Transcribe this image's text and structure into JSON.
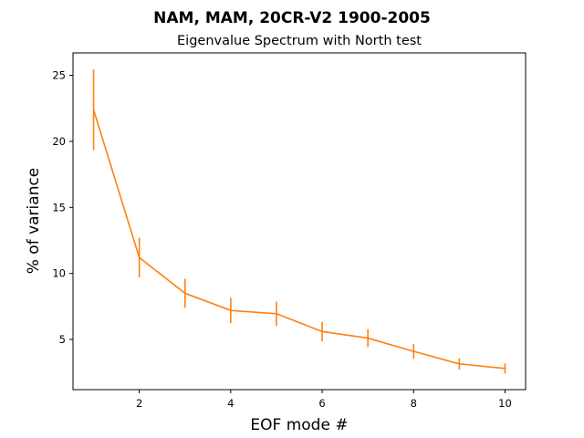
{
  "figure": {
    "suptitle": "NAM, MAM, 20CR-V2 1900-2005"
  },
  "chart_data": {
    "type": "line",
    "title": "Eigenvalue Spectrum with North test",
    "xlabel": "EOF mode #",
    "ylabel": "% of variance",
    "xlim": [
      0.55,
      10.45
    ],
    "ylim": [
      1.2,
      26.7
    ],
    "xticks": [
      2,
      4,
      6,
      8,
      10
    ],
    "yticks": [
      5,
      10,
      15,
      20,
      25
    ],
    "grid": false,
    "color": "#ff7f0e",
    "series": [
      {
        "x": [
          1,
          2,
          3,
          4,
          5,
          6,
          7,
          8,
          9,
          10
        ],
        "values": [
          22.4,
          11.2,
          8.5,
          7.2,
          6.95,
          5.6,
          5.1,
          4.1,
          3.15,
          2.8
        ],
        "error": [
          3.05,
          1.5,
          1.1,
          0.95,
          0.92,
          0.74,
          0.68,
          0.55,
          0.42,
          0.38
        ]
      }
    ]
  }
}
